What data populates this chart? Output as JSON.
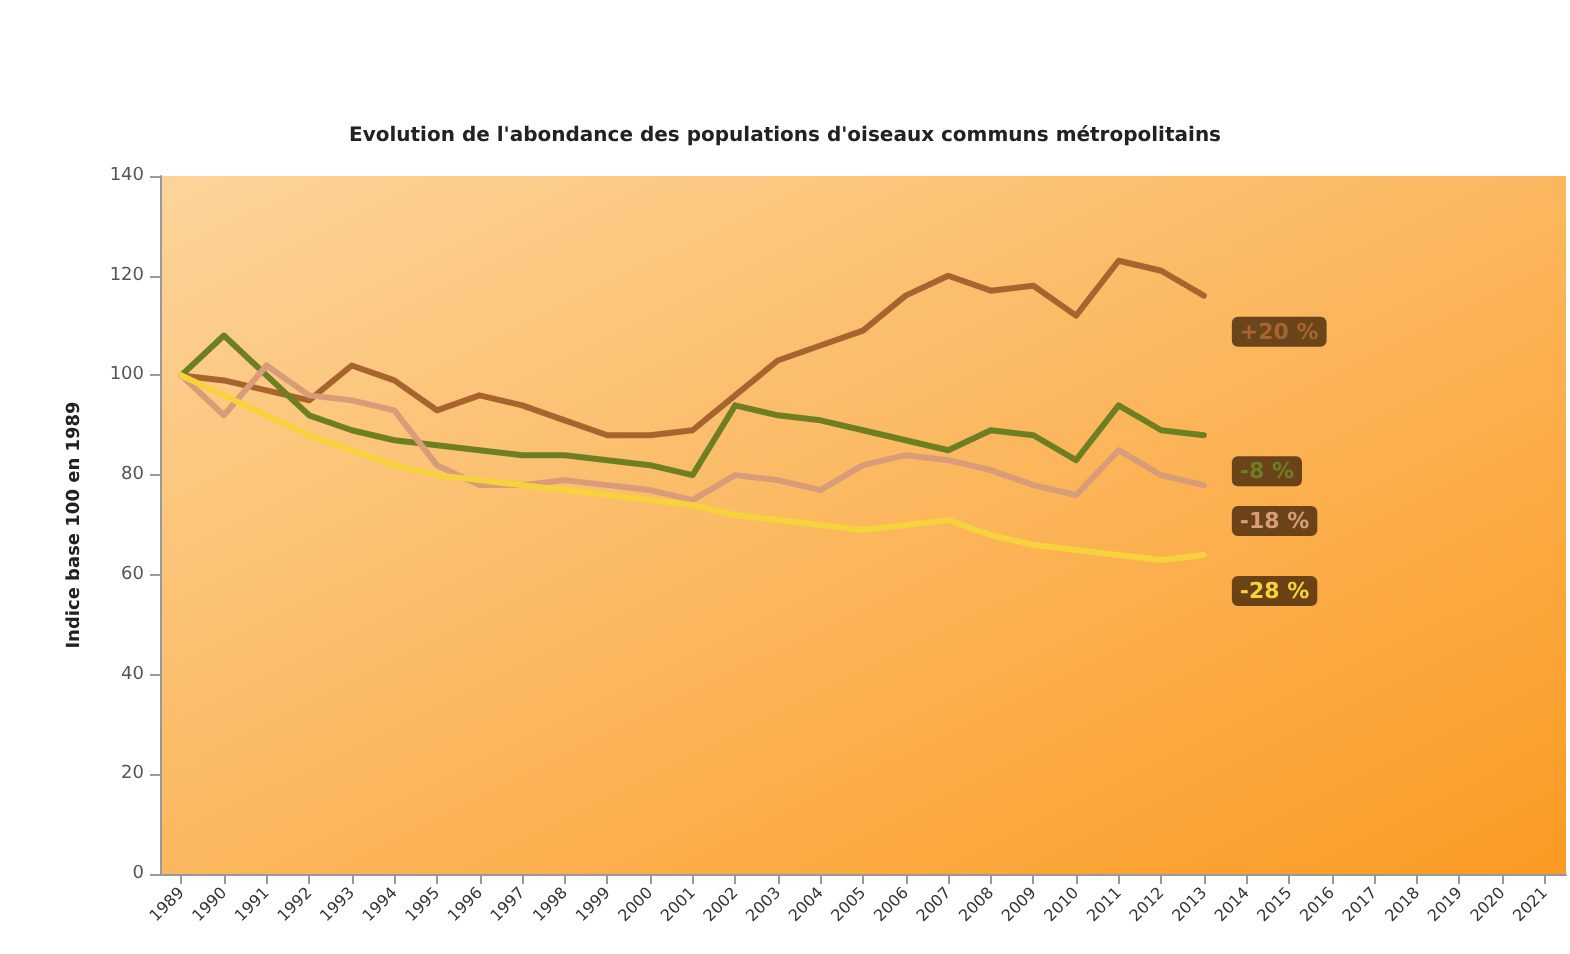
{
  "chart_data": {
    "type": "line",
    "title": "Evolution de l'abondance des populations d'oiseaux communs métropolitains",
    "ylabel": "Indice base 100 en 1989",
    "x": [
      1989,
      1990,
      1991,
      1992,
      1993,
      1994,
      1995,
      1996,
      1997,
      1998,
      1999,
      2000,
      2001,
      2002,
      2003,
      2004,
      2005,
      2006,
      2007,
      2008,
      2009,
      2010,
      2011,
      2012,
      2013
    ],
    "series": [
      {
        "color": "#a8642e",
        "values": [
          100,
          99,
          97,
          95,
          102,
          99,
          93,
          96,
          94,
          91,
          88,
          88,
          89,
          96,
          103,
          106,
          109,
          116,
          120,
          117,
          118,
          112,
          123,
          121,
          116
        ]
      },
      {
        "color": "#6e7f22",
        "values": [
          100,
          108,
          100,
          92,
          89,
          87,
          86,
          85,
          84,
          84,
          83,
          82,
          80,
          94,
          92,
          91,
          89,
          87,
          85,
          89,
          88,
          83,
          94,
          89,
          88
        ]
      },
      {
        "color": "#d89c78",
        "values": [
          100,
          92,
          102,
          96,
          95,
          93,
          82,
          78,
          78,
          79,
          78,
          77,
          75,
          80,
          79,
          77,
          82,
          84,
          83,
          81,
          78,
          76,
          85,
          80,
          78
        ]
      },
      {
        "color": "#f6d23c",
        "values": [
          100,
          96,
          92,
          88,
          85,
          82,
          80,
          79,
          78,
          77,
          76,
          75,
          74,
          72,
          71,
          70,
          69,
          70,
          71,
          68,
          66,
          65,
          64,
          63,
          64
        ]
      }
    ],
    "annotations": [
      "+20 %",
      "-8 %",
      "-18 %",
      "-28 %"
    ],
    "xlim": [
      1988.5,
      2021.5
    ],
    "xticks": [
      1989,
      1990,
      1991,
      1992,
      1993,
      1994,
      1995,
      1996,
      1997,
      1998,
      1999,
      2000,
      2001,
      2002,
      2003,
      2004,
      2005,
      2006,
      2007,
      2008,
      2009,
      2010,
      2011,
      2012,
      2013,
      2014,
      2015,
      2016,
      2017,
      2018,
      2019,
      2020,
      2021
    ],
    "ylim": [
      0,
      140
    ],
    "yticks": [
      0,
      20,
      40,
      60,
      80,
      100,
      120,
      140
    ],
    "grid": false,
    "marker": "none",
    "line_style": "solid"
  }
}
